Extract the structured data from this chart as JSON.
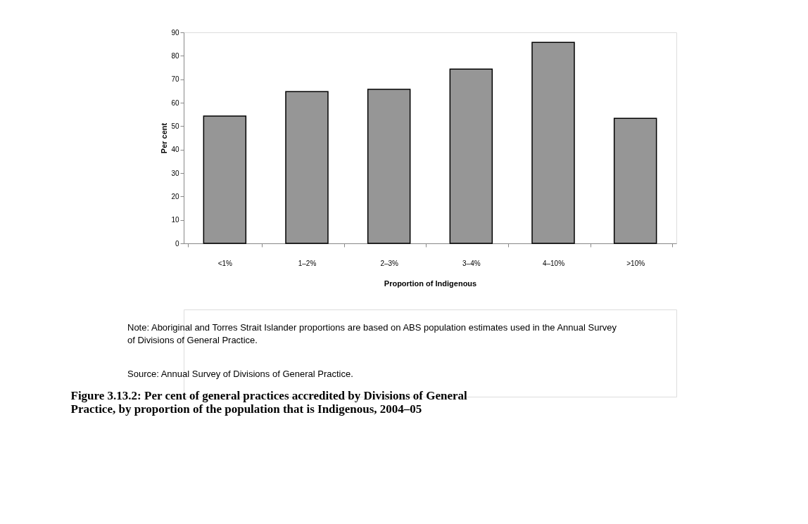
{
  "chart_data": {
    "type": "bar",
    "title": "Figure 3.13.2: Per cent of general practices accredited by Divisions of General Practice, by proportion of the population that is Indigenous, 2004–05",
    "xlabel": "Proportion of Indigenous",
    "ylabel": "Per cent",
    "categories": [
      "<1%",
      "1–2%",
      "2–3%",
      "3–4%",
      "4–10%",
      ">10%"
    ],
    "values": [
      54.3,
      64.7,
      65.7,
      74.3,
      85.7,
      53.3
    ],
    "color": "#969696",
    "ylim": [
      0,
      90
    ],
    "yticks": [
      0,
      10,
      20,
      30,
      40,
      50,
      60,
      70,
      80,
      90
    ],
    "grid": false,
    "annotations": [
      "Note: Aboriginal and Torres Strait Islander proportions are based on ABS population estimates used in the Annual Survey of Divisions of General Practice.",
      "Source: Annual Survey of Divisions of General Practice."
    ]
  }
}
